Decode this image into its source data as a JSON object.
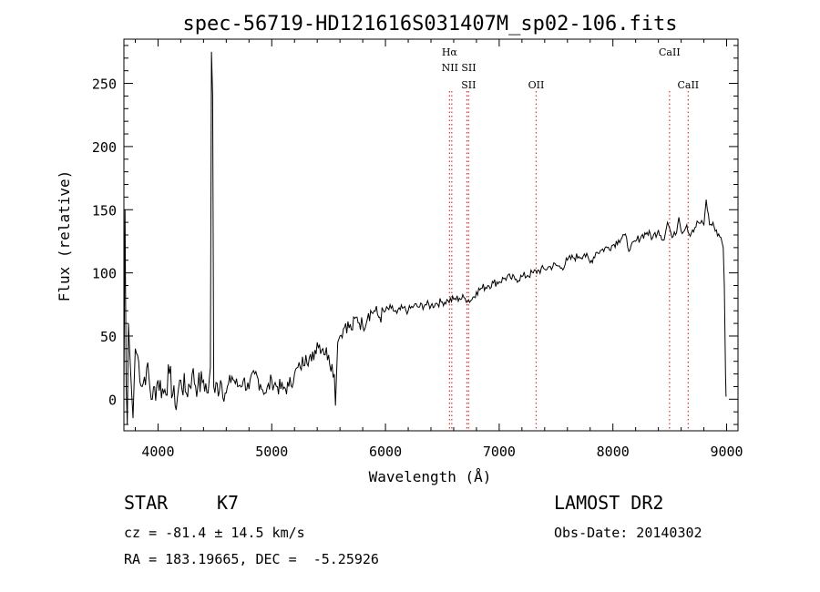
{
  "chart_data": {
    "type": "line",
    "title": "spec-56719-HD121616S031407M_sp02-106.fits",
    "xlabel": "Wavelength (Å)",
    "ylabel": "Flux (relative)",
    "xlim": [
      3700,
      9100
    ],
    "ylim": [
      -25,
      285
    ],
    "xticks": [
      4000,
      5000,
      6000,
      7000,
      8000,
      9000
    ],
    "yticks": [
      0,
      50,
      100,
      150,
      200,
      250
    ],
    "grid": false,
    "series": [
      {
        "x": [
          3700,
          3710,
          3720,
          3730,
          3740,
          3760,
          3780,
          3800,
          3830,
          3860,
          3900,
          3950,
          4000,
          4050,
          4100,
          4150,
          4200,
          4250,
          4300,
          4350,
          4400,
          4440,
          4460,
          4470,
          4480,
          4490,
          4500,
          4550,
          4600,
          4650,
          4700,
          4750,
          4800,
          4850,
          4900,
          4950,
          5000,
          5050,
          5100,
          5150,
          5200,
          5250,
          5300,
          5350,
          5400,
          5450,
          5500,
          5550,
          5560,
          5580,
          5600,
          5650,
          5700,
          5750,
          5800,
          5850,
          5900,
          5950,
          6000,
          6050,
          6100,
          6150,
          6200,
          6250,
          6300,
          6350,
          6400,
          6450,
          6500,
          6550,
          6600,
          6650,
          6700,
          6750,
          6800,
          6850,
          6900,
          6950,
          7000,
          7050,
          7100,
          7150,
          7200,
          7250,
          7300,
          7350,
          7400,
          7450,
          7500,
          7550,
          7600,
          7650,
          7700,
          7750,
          7800,
          7850,
          7900,
          7950,
          8000,
          8050,
          8100,
          8150,
          8200,
          8250,
          8300,
          8350,
          8400,
          8450,
          8480,
          8500,
          8520,
          8550,
          8580,
          8600,
          8650,
          8680,
          8700,
          8750,
          8800,
          8820,
          8850,
          8880,
          8900,
          8950,
          8970,
          8980,
          8990,
          8995
        ],
        "y": [
          5,
          150,
          10,
          -20,
          60,
          20,
          -15,
          40,
          30,
          10,
          25,
          0,
          15,
          5,
          20,
          -5,
          15,
          5,
          20,
          10,
          15,
          5,
          25,
          275,
          240,
          10,
          5,
          15,
          5,
          18,
          10,
          15,
          8,
          20,
          12,
          5,
          15,
          10,
          8,
          10,
          20,
          25,
          35,
          30,
          45,
          40,
          35,
          20,
          -5,
          45,
          50,
          60,
          55,
          65,
          58,
          68,
          70,
          65,
          70,
          72,
          68,
          72,
          70,
          74,
          73,
          75,
          74,
          76,
          77,
          78,
          79,
          80,
          80,
          78,
          85,
          88,
          90,
          92,
          93,
          96,
          96,
          95,
          97,
          98,
          100,
          102,
          103,
          105,
          106,
          104,
          110,
          112,
          113,
          115,
          108,
          116,
          118,
          120,
          122,
          126,
          130,
          118,
          125,
          129,
          132,
          128,
          134,
          126,
          140,
          135,
          128,
          130,
          144,
          133,
          138,
          129,
          134,
          140,
          138,
          158,
          138,
          140,
          133,
          128,
          120,
          90,
          20,
          2
        ]
      }
    ],
    "lines": [
      {
        "label": "Hα",
        "x": 6563
      },
      {
        "label": "NII",
        "x": 6583
      },
      {
        "label": "SII",
        "x": 6716
      },
      {
        "label": "SII",
        "x": 6731
      },
      {
        "label": "OII",
        "x": 7325
      },
      {
        "label": "CaII",
        "x": 8498
      },
      {
        "label": "CaII",
        "x": 8662
      }
    ]
  },
  "info": {
    "object_class": "STAR",
    "subclass": "K7",
    "survey": "LAMOST DR2",
    "cz": "cz = -81.4 ± 14.5 km/s",
    "obs_date": "Obs-Date: 20140302",
    "coords": "RA = 183.19665, DEC =  -5.25926"
  }
}
